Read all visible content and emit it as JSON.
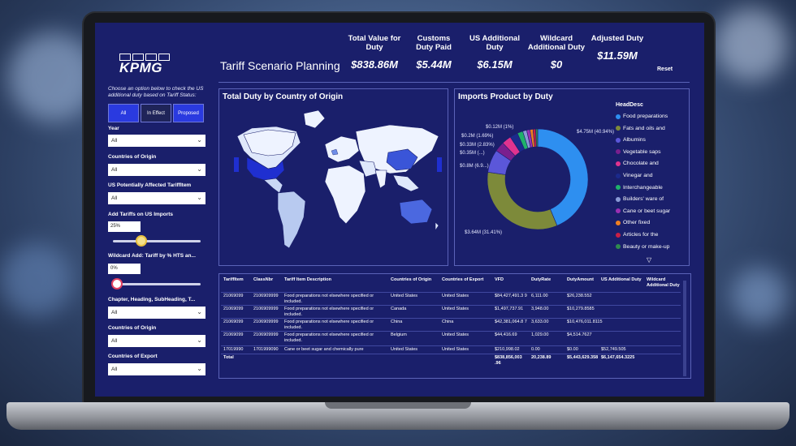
{
  "header": {
    "title": "Tariff Scenario Planning",
    "reset_label": "Reset"
  },
  "logo": {
    "text": "KPMG"
  },
  "kpis": [
    {
      "label": "Total Value for Duty",
      "value": "$838.86M"
    },
    {
      "label": "Customs Duty Paid",
      "value": "$5.44M"
    },
    {
      "label": "US Additional Duty",
      "value": "$6.15M"
    },
    {
      "label": "Wildcard Additional Duty",
      "value": "$0"
    },
    {
      "label": "Adjusted Duty",
      "value": "$11.59M"
    }
  ],
  "filters": {
    "instruction": "Choose an option below to check the US additional duty based on Tariff Status:",
    "status_buttons": [
      "All",
      "In Effect",
      "Proposed"
    ],
    "year_label": "Year",
    "year_value": "All",
    "countries_origin_label": "Countries of Origin",
    "countries_origin_value": "All",
    "affected_label": "US Potentially Affected TariffItem",
    "affected_value": "All",
    "add_tariffs_label": "Add Tariffs on US Imports",
    "add_tariffs_value": "25%",
    "add_tariffs_level": 0.3,
    "wildcard_label": "Wildcard Add: Tariff by % HTS an...",
    "wildcard_value": "0%",
    "wildcard_level": 0.0,
    "chapter_label": "Chapter, Heading, SubHeading, T...",
    "chapter_value": "All",
    "countries_origin2_label": "Countries of Origin",
    "countries_origin2_value": "All",
    "countries_export_label": "Countries of Export",
    "countries_export_value": "All"
  },
  "map_panel": {
    "title": "Total Duty by Country of Origin"
  },
  "donut_panel": {
    "title": "Imports Product by Duty",
    "legend_title": "HeadDesc",
    "legend": [
      {
        "name": "Food preparations",
        "color": "#2e8ff0"
      },
      {
        "name": "Fats and oils and",
        "color": "#7d8a3a"
      },
      {
        "name": "Albumins",
        "color": "#5b57d9"
      },
      {
        "name": "Vegetable saps",
        "color": "#7a1f8e"
      },
      {
        "name": "Chocolate and",
        "color": "#e0338f"
      },
      {
        "name": "Vinegar and",
        "color": "#1b2a8c"
      },
      {
        "name": "Interchangeable",
        "color": "#1fb16a"
      },
      {
        "name": "Builders' ware of",
        "color": "#8a9ad6"
      },
      {
        "name": "Cane or beet sugar",
        "color": "#9b2fb3"
      },
      {
        "name": "Other fixed",
        "color": "#f07f20"
      },
      {
        "name": "Articles for the",
        "color": "#c91f45"
      },
      {
        "name": "Beauty or make-up",
        "color": "#2f8a4e"
      }
    ],
    "labels": {
      "big": "$4.75M (40.94%)",
      "second": "$3.64M (31.41%)",
      "small1": "$0.12M (1%)",
      "small2": "$0.2M (1.69%)",
      "small3": "$0.33M (2.83%)",
      "small4": "$0.35M (...)",
      "small5": "$0.8M (6.9...)"
    }
  },
  "chart_data": {
    "type": "pie",
    "title": "Imports Product by Duty",
    "categories": [
      "Food preparations",
      "Fats and oils and",
      "Albumins",
      "Vegetable saps",
      "Chocolate and",
      "Vinegar and",
      "Interchangeable",
      "Builders' ware of",
      "Cane or beet sugar",
      "Other fixed",
      "Articles for the",
      "Beauty or make-up"
    ],
    "values": [
      40.94,
      31.41,
      6.9,
      3.0,
      2.83,
      2.4,
      1.69,
      1.2,
      1.0,
      0.9,
      0.8,
      0.6
    ],
    "units": "percent of duty",
    "donut": true,
    "legend": "right"
  },
  "table": {
    "headers": [
      "TariffItem",
      "ClassNbr",
      "Tariff Item Description",
      "Countries of Origin",
      "Countries of Export",
      "VFD",
      "DutyRate",
      "DutyAmount",
      "US Additional Duty",
      "Wildcard Additional Duty"
    ],
    "rows": [
      [
        "21069099",
        "2106909999",
        "Food preparations not elsewhere specified or included.",
        "United States",
        "United States",
        "$84,427,491.3 9",
        "6,111.00",
        "$26,238.552",
        "",
        ""
      ],
      [
        "21069099",
        "2106909999",
        "Food preparations not elsewhere specified or included.",
        "Canada",
        "United States",
        "$1,497,737.91",
        "3,948.00",
        "$10,279.8585",
        "",
        ""
      ],
      [
        "21069099",
        "2106909999",
        "Food preparations not elsewhere specified or included.",
        "China",
        "China",
        "$42,381,064.8 7",
        "3,633.00",
        "$10,476,011.8115",
        "",
        ""
      ],
      [
        "21069099",
        "2106909999",
        "Food preparations not elsewhere specified or included.",
        "Belgium",
        "United States",
        "$44,416.69",
        "1,029.00",
        "$4,514.7627",
        "",
        ""
      ],
      [
        "17019990",
        "1701999090",
        "Cane or beet sugar and chemically pure",
        "United States",
        "United States",
        "$210,998.02",
        "0.00",
        "$0.00",
        "$52,749.505",
        ""
      ],
      [
        "Total",
        "",
        "",
        "",
        "",
        "$838,856,003 .96",
        "20,238.89",
        "$5,443,629.358",
        "$6,147,654.3225",
        ""
      ]
    ]
  }
}
